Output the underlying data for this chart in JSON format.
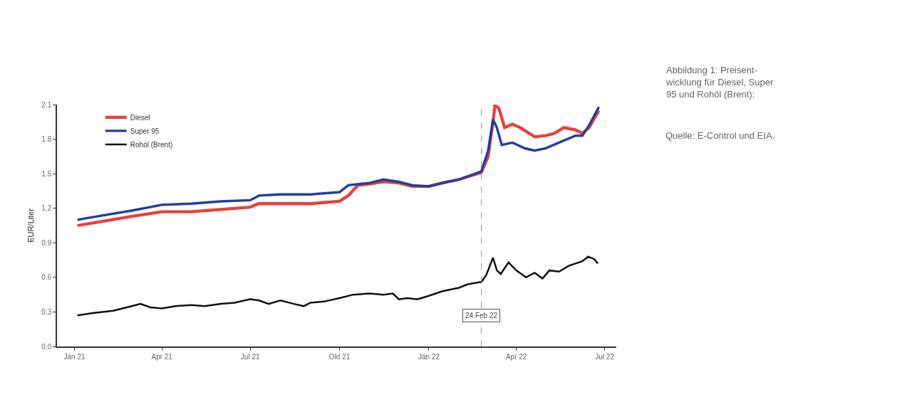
{
  "chart_data": {
    "type": "line",
    "title": "Abbildung 1: Preisent-\nwicklung für Diesel, Super\n95 und Rohöl (Brent):",
    "annotations": [
      "Quelle: E-Control und EIA."
    ],
    "ylabel": "EUR/Liter",
    "series": [
      {
        "name": "Diesel",
        "color": "#e8403a",
        "x": [
          "2021-01-04",
          "2021-02-01",
          "2021-03-01",
          "2021-04-01",
          "2021-05-01",
          "2021-06-01",
          "2021-07-01",
          "2021-07-10",
          "2021-08-01",
          "2021-09-01",
          "2021-10-01",
          "2021-10-10",
          "2021-10-20",
          "2021-11-01",
          "2021-11-15",
          "2021-12-01",
          "2021-12-15",
          "2022-01-01",
          "2022-01-15",
          "2022-02-01",
          "2022-02-24",
          "2022-03-03",
          "2022-03-08",
          "2022-03-10",
          "2022-03-14",
          "2022-03-20",
          "2022-03-28",
          "2022-04-05",
          "2022-04-20",
          "2022-05-01",
          "2022-05-10",
          "2022-05-20",
          "2022-06-01",
          "2022-06-08",
          "2022-06-15",
          "2022-06-25"
        ],
        "values": [
          1.05,
          1.09,
          1.13,
          1.17,
          1.17,
          1.19,
          1.21,
          1.24,
          1.24,
          1.24,
          1.26,
          1.31,
          1.4,
          1.41,
          1.43,
          1.42,
          1.39,
          1.39,
          1.42,
          1.45,
          1.51,
          1.65,
          1.95,
          2.09,
          2.07,
          1.9,
          1.93,
          1.9,
          1.82,
          1.83,
          1.85,
          1.9,
          1.88,
          1.85,
          1.9,
          2.05
        ]
      },
      {
        "name": "Super 95",
        "color": "#1f3fa0",
        "x": [
          "2021-01-04",
          "2021-02-01",
          "2021-03-01",
          "2021-04-01",
          "2021-05-01",
          "2021-06-01",
          "2021-07-01",
          "2021-07-10",
          "2021-08-01",
          "2021-09-01",
          "2021-10-01",
          "2021-10-10",
          "2021-11-01",
          "2021-11-15",
          "2021-12-01",
          "2021-12-15",
          "2022-01-01",
          "2022-01-15",
          "2022-02-01",
          "2022-02-24",
          "2022-03-03",
          "2022-03-08",
          "2022-03-12",
          "2022-03-17",
          "2022-03-28",
          "2022-04-10",
          "2022-04-20",
          "2022-05-01",
          "2022-05-15",
          "2022-06-01",
          "2022-06-08",
          "2022-06-15",
          "2022-06-25"
        ],
        "values": [
          1.1,
          1.14,
          1.18,
          1.23,
          1.24,
          1.26,
          1.27,
          1.31,
          1.32,
          1.32,
          1.34,
          1.4,
          1.42,
          1.45,
          1.43,
          1.4,
          1.39,
          1.42,
          1.45,
          1.52,
          1.7,
          1.97,
          1.9,
          1.75,
          1.77,
          1.72,
          1.7,
          1.72,
          1.77,
          1.83,
          1.83,
          1.92,
          2.08
        ]
      },
      {
        "name": "Rohöl (Brent)",
        "color": "#111111",
        "x": [
          "2021-01-04",
          "2021-01-20",
          "2021-02-10",
          "2021-03-01",
          "2021-03-10",
          "2021-03-20",
          "2021-04-01",
          "2021-04-15",
          "2021-05-01",
          "2021-05-15",
          "2021-06-01",
          "2021-06-15",
          "2021-07-01",
          "2021-07-10",
          "2021-07-20",
          "2021-08-01",
          "2021-08-15",
          "2021-08-25",
          "2021-09-01",
          "2021-09-15",
          "2021-10-01",
          "2021-10-15",
          "2021-11-01",
          "2021-11-15",
          "2021-11-25",
          "2021-12-01",
          "2021-12-10",
          "2021-12-20",
          "2022-01-01",
          "2022-01-15",
          "2022-02-01",
          "2022-02-10",
          "2022-02-24",
          "2022-03-01",
          "2022-03-08",
          "2022-03-12",
          "2022-03-16",
          "2022-03-24",
          "2022-04-01",
          "2022-04-11",
          "2022-04-20",
          "2022-04-28",
          "2022-05-05",
          "2022-05-15",
          "2022-05-25",
          "2022-06-08",
          "2022-06-14",
          "2022-06-20",
          "2022-06-24"
        ],
        "values": [
          0.27,
          0.29,
          0.31,
          0.35,
          0.37,
          0.34,
          0.33,
          0.35,
          0.36,
          0.35,
          0.37,
          0.38,
          0.41,
          0.4,
          0.37,
          0.4,
          0.37,
          0.35,
          0.38,
          0.39,
          0.42,
          0.45,
          0.46,
          0.45,
          0.46,
          0.41,
          0.42,
          0.41,
          0.44,
          0.48,
          0.51,
          0.54,
          0.56,
          0.62,
          0.77,
          0.66,
          0.63,
          0.73,
          0.66,
          0.6,
          0.64,
          0.59,
          0.66,
          0.65,
          0.7,
          0.74,
          0.78,
          0.76,
          0.72
        ]
      }
    ],
    "xlim": [
      "2020-12-14",
      "2022-07-13"
    ],
    "xticks": [
      {
        "value": "2021-01-01",
        "label": "Jän 21"
      },
      {
        "value": "2021-04-01",
        "label": "Apr 21"
      },
      {
        "value": "2021-07-01",
        "label": "Jul 21"
      },
      {
        "value": "2021-10-01",
        "label": "Okt 21"
      },
      {
        "value": "2022-01-01",
        "label": "Jän 22"
      },
      {
        "value": "2022-04-01",
        "label": "Apr 22"
      },
      {
        "value": "2022-07-01",
        "label": "Jul 22"
      }
    ],
    "ylim": [
      0,
      2.1
    ],
    "yticks": [
      {
        "value": 0,
        "label": "0.0"
      },
      {
        "value": 0.3,
        "label": "0.3"
      },
      {
        "value": 0.6,
        "label": "0.6"
      },
      {
        "value": 0.9,
        "label": "0.9"
      },
      {
        "value": 1.2,
        "label": "1.2"
      },
      {
        "value": 1.5,
        "label": "1.5"
      },
      {
        "value": 1.8,
        "label": "1.8"
      },
      {
        "value": 2.1,
        "label": "2.1"
      }
    ],
    "ref_lines": [
      {
        "axis": "x",
        "value": "2022-02-24",
        "label": "24 Feb 22",
        "color": "#999999",
        "line_style": "dashed"
      }
    ],
    "legend": "top left",
    "marker": "none",
    "line_style": "solid"
  }
}
